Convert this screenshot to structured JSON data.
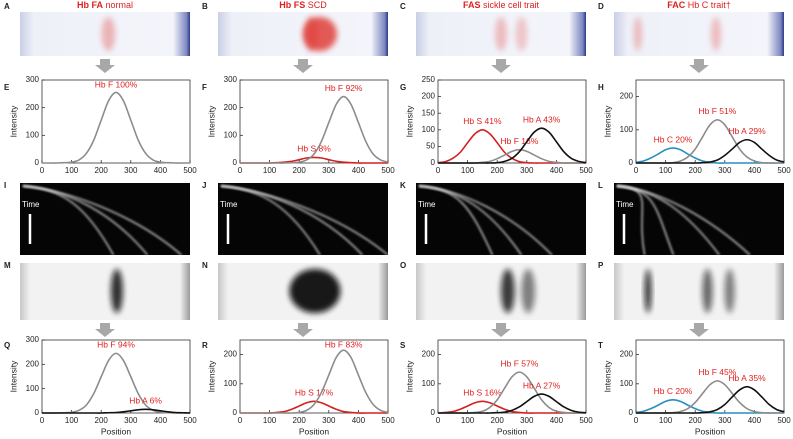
{
  "figure": {
    "letters": [
      "A",
      "B",
      "C",
      "D",
      "E",
      "F",
      "G",
      "H",
      "I",
      "J",
      "K",
      "L",
      "M",
      "N",
      "O",
      "P",
      "Q",
      "R",
      "S",
      "T"
    ],
    "headers": [
      {
        "bold": "Hb FA",
        "text": "normal"
      },
      {
        "bold": "Hb FS",
        "text": "SCD"
      },
      {
        "bold": "FAS",
        "text": "sickle cell trait"
      },
      {
        "bold": "FAC",
        "text": "Hb C trait†"
      }
    ],
    "time_labels": [
      "Time",
      "Time",
      "Time",
      "Time"
    ]
  },
  "chart_data": [
    {
      "type": "line",
      "ylabel": "Intensity",
      "x": [
        0,
        25,
        50,
        75,
        100,
        125,
        150,
        175,
        200,
        225,
        250,
        275,
        300,
        325,
        350,
        375,
        400,
        425,
        450,
        475,
        500
      ],
      "xlim": [
        0,
        500
      ],
      "xticks": [
        0,
        100,
        200,
        300,
        400,
        500
      ],
      "ylim": [
        0,
        300
      ],
      "yticks": [
        0,
        100,
        200,
        300
      ],
      "series": [
        {
          "label": "Hb F 100%",
          "color": "#8c8c8c",
          "values": [
            0,
            0,
            0,
            1,
            3,
            11,
            35,
            83,
            155,
            225,
            255,
            225,
            155,
            83,
            35,
            11,
            3,
            1,
            0,
            0,
            0
          ]
        }
      ]
    },
    {
      "type": "line",
      "ylabel": "Intensity",
      "x": [
        0,
        25,
        50,
        75,
        100,
        125,
        150,
        175,
        200,
        225,
        250,
        275,
        300,
        325,
        350,
        375,
        400,
        425,
        450,
        475,
        500
      ],
      "xlim": [
        0,
        500
      ],
      "xticks": [
        0,
        100,
        200,
        300,
        400,
        500
      ],
      "ylim": [
        0,
        300
      ],
      "yticks": [
        0,
        100,
        200,
        300
      ],
      "series": [
        {
          "label": "Hb S 8%",
          "color": "#d42020",
          "values": [
            0,
            0,
            0,
            0,
            0,
            1,
            3,
            6,
            12,
            18,
            20,
            18,
            12,
            6,
            3,
            1,
            0,
            0,
            0,
            0,
            0
          ]
        },
        {
          "label": "Hb F 92%",
          "color": "#8c8c8c",
          "values": [
            0,
            0,
            0,
            0,
            0,
            0,
            0,
            1,
            3,
            11,
            32,
            78,
            146,
            212,
            240,
            212,
            146,
            78,
            32,
            11,
            3
          ]
        }
      ]
    },
    {
      "type": "line",
      "ylabel": "Intensity",
      "x": [
        0,
        25,
        50,
        75,
        100,
        125,
        150,
        175,
        200,
        225,
        250,
        275,
        300,
        325,
        350,
        375,
        400,
        425,
        450,
        475,
        500
      ],
      "xlim": [
        0,
        500
      ],
      "xticks": [
        0,
        100,
        200,
        300,
        400,
        500
      ],
      "ylim": [
        0,
        250
      ],
      "yticks": [
        0,
        50,
        100,
        150,
        200,
        250
      ],
      "series": [
        {
          "label": "Hb S 41%",
          "color": "#d42020",
          "values": [
            1,
            4,
            14,
            32,
            61,
            88,
            100,
            88,
            61,
            32,
            14,
            4,
            1,
            0,
            0,
            0,
            0,
            0,
            0,
            0,
            0
          ]
        },
        {
          "label": "Hb F 16%",
          "color": "#8c8c8c",
          "values": [
            0,
            0,
            0,
            0,
            0,
            0,
            2,
            5,
            13,
            24,
            35,
            40,
            35,
            24,
            13,
            5,
            2,
            0,
            0,
            0,
            0
          ]
        },
        {
          "label": "Hb A 43%",
          "color": "#111111",
          "values": [
            0,
            0,
            0,
            0,
            0,
            0,
            0,
            0,
            1,
            5,
            14,
            34,
            64,
            93,
            105,
            93,
            64,
            34,
            14,
            5,
            1
          ]
        }
      ]
    },
    {
      "type": "line",
      "ylabel": "Intensity",
      "x": [
        0,
        25,
        50,
        75,
        100,
        125,
        150,
        175,
        200,
        225,
        250,
        275,
        300,
        325,
        350,
        375,
        400,
        425,
        450,
        475,
        500
      ],
      "xlim": [
        0,
        500
      ],
      "xticks": [
        0,
        100,
        200,
        300,
        400,
        500
      ],
      "ylim": [
        0,
        250
      ],
      "yticks": [
        0,
        100,
        200
      ],
      "series": [
        {
          "label": "Hb C 20%",
          "color": "#2a8fc0",
          "values": [
            2,
            6,
            15,
            27,
            40,
            45,
            40,
            27,
            15,
            6,
            2,
            0,
            0,
            0,
            0,
            0,
            0,
            0,
            0,
            0,
            0
          ]
        },
        {
          "label": "Hb F 51%",
          "color": "#8c8c8c",
          "values": [
            0,
            0,
            0,
            0,
            0,
            1,
            6,
            18,
            42,
            79,
            115,
            130,
            115,
            79,
            42,
            18,
            6,
            1,
            0,
            0,
            0
          ]
        },
        {
          "label": "Hb A 29%",
          "color": "#111111",
          "values": [
            0,
            0,
            0,
            0,
            0,
            0,
            0,
            0,
            0,
            1,
            3,
            9,
            23,
            42,
            62,
            70,
            62,
            42,
            23,
            9,
            3
          ]
        }
      ]
    },
    {
      "type": "line",
      "ylabel": "Intensity",
      "xlabel": "Position",
      "x": [
        0,
        25,
        50,
        75,
        100,
        125,
        150,
        175,
        200,
        225,
        250,
        275,
        300,
        325,
        350,
        375,
        400,
        425,
        450,
        475,
        500
      ],
      "xlim": [
        0,
        500
      ],
      "xticks": [
        0,
        100,
        200,
        300,
        400,
        500
      ],
      "ylim": [
        0,
        300
      ],
      "yticks": [
        0,
        100,
        200,
        300
      ],
      "series": [
        {
          "label": "Hb F 94%",
          "color": "#8c8c8c",
          "values": [
            0,
            0,
            0,
            1,
            3,
            11,
            33,
            80,
            149,
            216,
            245,
            216,
            149,
            80,
            33,
            11,
            3,
            1,
            0,
            0,
            0
          ]
        },
        {
          "label": "Hb A 6%",
          "color": "#111111",
          "values": [
            0,
            0,
            0,
            0,
            0,
            0,
            0,
            0,
            0,
            1,
            2,
            5,
            9,
            13,
            15,
            13,
            9,
            5,
            2,
            1,
            0
          ]
        }
      ]
    },
    {
      "type": "line",
      "ylabel": "Intensity",
      "xlabel": "Position",
      "x": [
        0,
        25,
        50,
        75,
        100,
        125,
        150,
        175,
        200,
        225,
        250,
        275,
        300,
        325,
        350,
        375,
        400,
        425,
        450,
        475,
        500
      ],
      "xlim": [
        0,
        500
      ],
      "xticks": [
        0,
        100,
        200,
        300,
        400,
        500
      ],
      "ylim": [
        0,
        250
      ],
      "yticks": [
        0,
        100,
        200
      ],
      "series": [
        {
          "label": "Hb S 17%",
          "color": "#d42020",
          "values": [
            0,
            0,
            0,
            0,
            0,
            2,
            5,
            13,
            24,
            35,
            40,
            35,
            24,
            13,
            5,
            2,
            0,
            0,
            0,
            0,
            0
          ]
        },
        {
          "label": "Hb F 83%",
          "color": "#8c8c8c",
          "values": [
            0,
            0,
            0,
            0,
            0,
            0,
            0,
            0,
            2,
            9,
            29,
            70,
            130,
            190,
            215,
            190,
            130,
            70,
            29,
            9,
            2
          ]
        }
      ]
    },
    {
      "type": "line",
      "ylabel": "Intensity",
      "xlabel": "Position",
      "x": [
        0,
        25,
        50,
        75,
        100,
        125,
        150,
        175,
        200,
        225,
        250,
        275,
        300,
        325,
        350,
        375,
        400,
        425,
        450,
        475,
        500
      ],
      "xlim": [
        0,
        500
      ],
      "xticks": [
        0,
        100,
        200,
        300,
        400,
        500
      ],
      "ylim": [
        0,
        250
      ],
      "yticks": [
        0,
        100,
        200
      ],
      "series": [
        {
          "label": "Hb S 16%",
          "color": "#d42020",
          "values": [
            0,
            2,
            5,
            13,
            24,
            35,
            40,
            35,
            24,
            13,
            5,
            2,
            0,
            0,
            0,
            0,
            0,
            0,
            0,
            0,
            0
          ]
        },
        {
          "label": "Hb F 57%",
          "color": "#8c8c8c",
          "values": [
            0,
            0,
            0,
            0,
            0,
            2,
            6,
            19,
            45,
            85,
            124,
            140,
            124,
            85,
            45,
            19,
            6,
            2,
            0,
            0,
            0
          ]
        },
        {
          "label": "Hb A 27%",
          "color": "#111111",
          "values": [
            0,
            0,
            0,
            0,
            0,
            0,
            0,
            0,
            1,
            3,
            9,
            21,
            39,
            57,
            65,
            57,
            39,
            21,
            9,
            3,
            1
          ]
        }
      ]
    },
    {
      "type": "line",
      "ylabel": "Intensity",
      "xlabel": "Position",
      "x": [
        0,
        25,
        50,
        75,
        100,
        125,
        150,
        175,
        200,
        225,
        250,
        275,
        300,
        325,
        350,
        375,
        400,
        425,
        450,
        475,
        500
      ],
      "xlim": [
        0,
        500
      ],
      "xticks": [
        0,
        100,
        200,
        300,
        400,
        500
      ],
      "ylim": [
        0,
        250
      ],
      "yticks": [
        0,
        100,
        200
      ],
      "series": [
        {
          "label": "Hb C 20%",
          "color": "#2a8fc0",
          "values": [
            2,
            6,
            15,
            27,
            40,
            45,
            40,
            27,
            15,
            6,
            2,
            0,
            0,
            0,
            0,
            0,
            0,
            0,
            0,
            0,
            0
          ]
        },
        {
          "label": "Hb F 45%",
          "color": "#8c8c8c",
          "values": [
            0,
            0,
            0,
            0,
            0,
            1,
            5,
            15,
            36,
            67,
            97,
            110,
            97,
            67,
            36,
            15,
            5,
            1,
            0,
            0,
            0
          ]
        },
        {
          "label": "Hb A 35%",
          "color": "#111111",
          "values": [
            0,
            0,
            0,
            0,
            0,
            0,
            0,
            0,
            0,
            1,
            4,
            12,
            29,
            55,
            79,
            90,
            79,
            55,
            29,
            12,
            4
          ]
        }
      ]
    }
  ]
}
